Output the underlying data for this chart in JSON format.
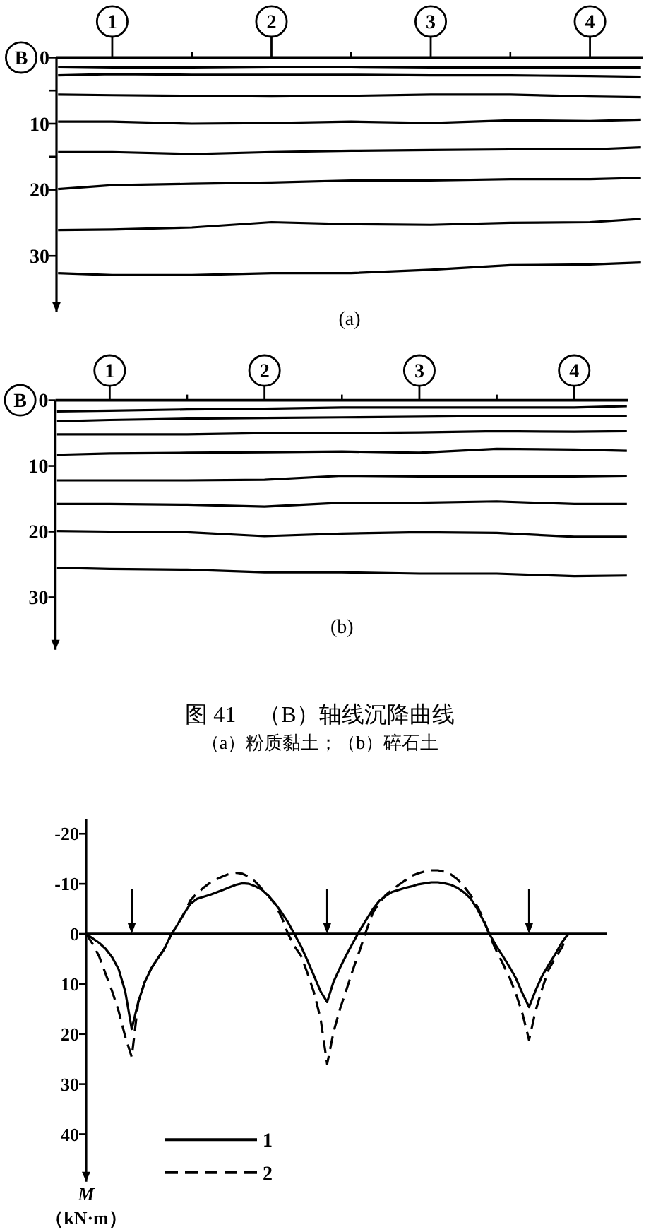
{
  "chart_data": [
    {
      "type": "line",
      "title": "(a)",
      "xlabel": "B",
      "x": [
        0.66,
        1,
        1.5,
        2,
        2.5,
        3,
        3.5,
        4,
        4.32
      ],
      "xlim": [
        0.65,
        4.33
      ],
      "xticks": [
        {
          "value": 1,
          "label": "1"
        },
        {
          "value": 1.5,
          "label": null
        },
        {
          "value": 2,
          "label": "2"
        },
        {
          "value": 2.5,
          "label": null
        },
        {
          "value": 3,
          "label": "3"
        },
        {
          "value": 3.5,
          "label": null
        },
        {
          "value": 4,
          "label": "4"
        }
      ],
      "ylim": [
        38.5,
        0
      ],
      "yticks": [
        0,
        {
          "value": 5,
          "label": null
        },
        10,
        {
          "value": 15,
          "label": null
        },
        20,
        30
      ],
      "line_style": "solid",
      "series": [
        {
          "color": "#000000",
          "values": [
            1.4,
            1.5,
            1.5,
            1.4,
            1.4,
            1.5,
            1.5,
            1.5,
            1.5
          ]
        },
        {
          "color": "#000000",
          "values": [
            2.7,
            2.5,
            2.6,
            2.6,
            2.6,
            2.7,
            2.7,
            2.8,
            2.9
          ]
        },
        {
          "color": "#000000",
          "values": [
            5.6,
            5.7,
            5.8,
            5.9,
            5.8,
            5.6,
            5.6,
            5.9,
            6.0
          ]
        },
        {
          "color": "#000000",
          "values": [
            9.7,
            9.7,
            10.0,
            9.9,
            9.7,
            9.9,
            9.5,
            9.6,
            9.4
          ]
        },
        {
          "color": "#000000",
          "values": [
            14.3,
            14.3,
            14.6,
            14.3,
            14.1,
            14.0,
            13.9,
            13.9,
            13.6
          ]
        },
        {
          "color": "#000000",
          "values": [
            19.9,
            19.3,
            19.1,
            18.9,
            18.6,
            18.6,
            18.4,
            18.4,
            18.2
          ]
        },
        {
          "color": "#000000",
          "values": [
            26.1,
            26.0,
            25.7,
            24.9,
            25.2,
            25.3,
            25.0,
            24.9,
            24.4
          ]
        },
        {
          "color": "#000000",
          "values": [
            32.6,
            32.9,
            32.9,
            32.6,
            32.6,
            32.1,
            31.4,
            31.3,
            31.0
          ]
        }
      ]
    },
    {
      "type": "line",
      "title": "(b)",
      "xlabel": "B",
      "x": [
        0.66,
        1,
        1.5,
        2,
        2.5,
        3,
        3.5,
        4,
        4.34
      ],
      "xlim": [
        0.65,
        4.35
      ],
      "xticks": [
        {
          "value": 1,
          "label": "1"
        },
        {
          "value": 1.5,
          "label": null
        },
        {
          "value": 2,
          "label": "2"
        },
        {
          "value": 2.5,
          "label": null
        },
        {
          "value": 3,
          "label": "3"
        },
        {
          "value": 3.5,
          "label": null
        },
        {
          "value": 4,
          "label": "4"
        }
      ],
      "ylim": [
        38,
        0
      ],
      "yticks": [
        0,
        10,
        20,
        30
      ],
      "line_style": "solid",
      "annotations": [
        "图 41　（B）轴线沉降曲线",
        "（a）粉质黏土；（b）碎石土"
      ],
      "series": [
        {
          "color": "#000000",
          "values": [
            1.7,
            1.6,
            1.4,
            1.3,
            1.1,
            1.1,
            1.1,
            1.1,
            0.9
          ]
        },
        {
          "color": "#000000",
          "values": [
            3.2,
            3.0,
            2.8,
            2.7,
            2.6,
            2.5,
            2.4,
            2.4,
            2.4
          ]
        },
        {
          "color": "#000000",
          "values": [
            5.2,
            5.2,
            5.2,
            5.0,
            5.0,
            4.9,
            4.7,
            4.8,
            4.7
          ]
        },
        {
          "color": "#000000",
          "values": [
            8.3,
            8.1,
            8.0,
            7.9,
            7.8,
            8.0,
            7.4,
            7.5,
            7.7
          ]
        },
        {
          "color": "#000000",
          "values": [
            12.2,
            12.2,
            12.2,
            12.1,
            11.5,
            11.6,
            11.6,
            11.6,
            11.5
          ]
        },
        {
          "color": "#000000",
          "values": [
            15.8,
            15.8,
            15.9,
            16.2,
            15.6,
            15.6,
            15.4,
            15.8,
            15.8
          ]
        },
        {
          "color": "#000000",
          "values": [
            19.9,
            20.0,
            20.1,
            20.7,
            20.3,
            20.1,
            20.2,
            20.8,
            20.8
          ]
        },
        {
          "color": "#000000",
          "values": [
            25.5,
            25.7,
            25.8,
            26.2,
            26.2,
            26.4,
            26.4,
            26.8,
            26.7
          ]
        }
      ]
    },
    {
      "type": "line",
      "ylabel": "M\n（kN·m）",
      "ylim": [
        49.5,
        -23
      ],
      "yticks": [
        -20,
        -10,
        0,
        10,
        20,
        30,
        40
      ],
      "legend": "bottom left",
      "categories": [
        null,
        null,
        null,
        null,
        null,
        null,
        null,
        null,
        null,
        null,
        null,
        null,
        null,
        null,
        null,
        null,
        null,
        null,
        null,
        null,
        null,
        null,
        null,
        null,
        null,
        null,
        null,
        null,
        null,
        null,
        null,
        null,
        null,
        null,
        null,
        null,
        null,
        null,
        null,
        null,
        null,
        null,
        null,
        null,
        null,
        null,
        null,
        null,
        null,
        null,
        null,
        null,
        null,
        null,
        null,
        null,
        null,
        null,
        null,
        null,
        null,
        null,
        null,
        null,
        null,
        null,
        null,
        null,
        null,
        null,
        null,
        null,
        null,
        null,
        null,
        null,
        null,
        null,
        null,
        null,
        null
      ],
      "series": [
        {
          "name": "1",
          "color": "#000000",
          "line_style": "solid",
          "values": [
            0,
            0.9,
            1.8,
            3.0,
            4.7,
            7.1,
            11.5,
            19,
            13.6,
            9.6,
            6.9,
            4.9,
            3.0,
            0.3,
            -1.8,
            -4.0,
            -6.0,
            -7.0,
            -7.4,
            -7.8,
            -8.3,
            -8.8,
            -9.3,
            -9.8,
            -10.1,
            -10.0,
            -9.5,
            -8.8,
            -7.6,
            -6.1,
            -4.3,
            -2.3,
            0.1,
            2.5,
            5.4,
            8.4,
            11.5,
            13.6,
            9.5,
            6.7,
            4.1,
            1.7,
            -0.7,
            -2.8,
            -4.9,
            -6.6,
            -7.6,
            -8.4,
            -8.8,
            -9.2,
            -9.5,
            -9.9,
            -10.1,
            -10.3,
            -10.3,
            -10.1,
            -9.8,
            -9.2,
            -8.3,
            -7.1,
            -5.1,
            -2.6,
            0.2,
            2.5,
            4.5,
            6.6,
            8.9,
            11.9,
            14.6,
            11.3,
            8.4,
            6.2,
            4.1,
            1.8,
            0,
            null,
            null,
            null,
            null,
            null,
            null
          ]
        },
        {
          "name": "2",
          "color": "#000000",
          "line_style": "dashed",
          "values": [
            0,
            2.0,
            4.5,
            8.0,
            11.5,
            15.5,
            20.5,
            24.6,
            13.6,
            9.6,
            6.9,
            4.9,
            3.0,
            0.3,
            -1.8,
            -4.0,
            -6.7,
            -8.1,
            -9.2,
            -10.2,
            -10.9,
            -11.5,
            -12.0,
            -12.2,
            -12.0,
            -11.4,
            -10.4,
            -9.0,
            -7.6,
            -5.9,
            -3.4,
            0,
            2.5,
            4.4,
            7.9,
            11.8,
            17.0,
            26.0,
            19.5,
            14.9,
            11.0,
            7.0,
            3.3,
            -0.6,
            -4.2,
            -6.2,
            -7.8,
            -8.8,
            -9.8,
            -10.7,
            -11.6,
            -12.1,
            -12.5,
            -12.7,
            -12.7,
            -12.4,
            -11.9,
            -10.9,
            -9.5,
            -7.8,
            -5.6,
            -3.0,
            0.5,
            3.4,
            6.0,
            8.7,
            12.0,
            16.0,
            21.2,
            15.4,
            11.0,
            7.1,
            4.9,
            2.8,
            0,
            null,
            null,
            null,
            null,
            null,
            null
          ]
        }
      ]
    }
  ]
}
